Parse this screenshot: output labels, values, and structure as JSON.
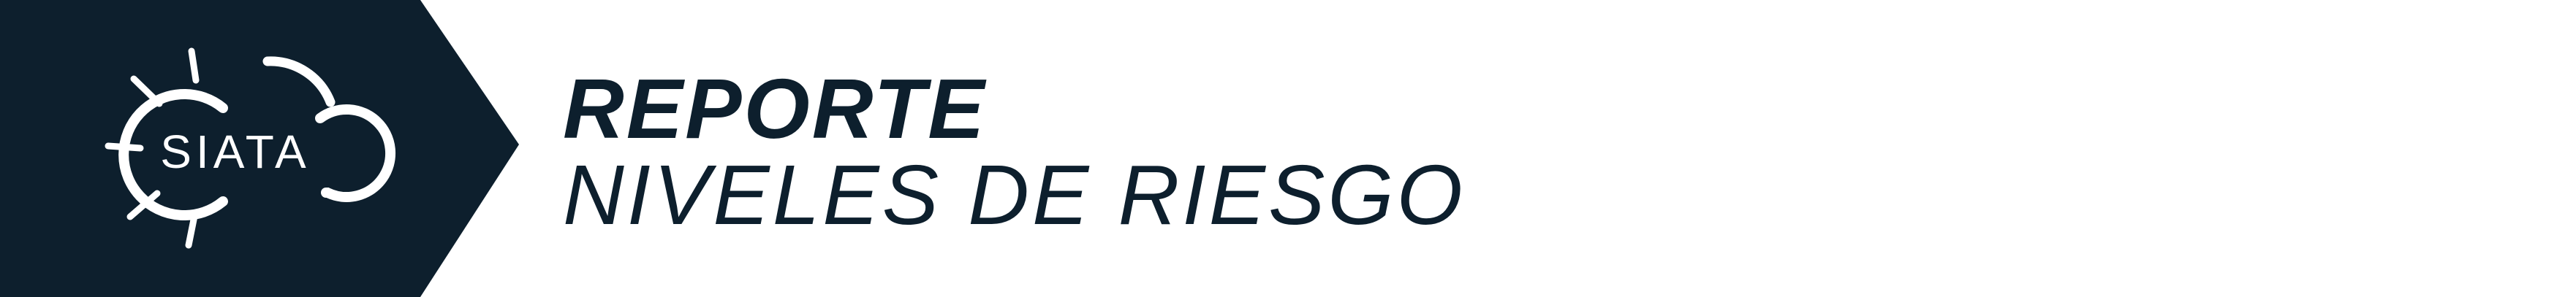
{
  "colors": {
    "panel_background": "#0d1f2d",
    "title_text": "#0d1f2d",
    "logo_foreground": "#ffffff",
    "page_background": "#ffffff"
  },
  "logo": {
    "text": "SIATA",
    "icon": "sun-cloud-icon"
  },
  "title": {
    "line1": "REPORTE",
    "line2": "NIVELES DE RIESGO"
  }
}
